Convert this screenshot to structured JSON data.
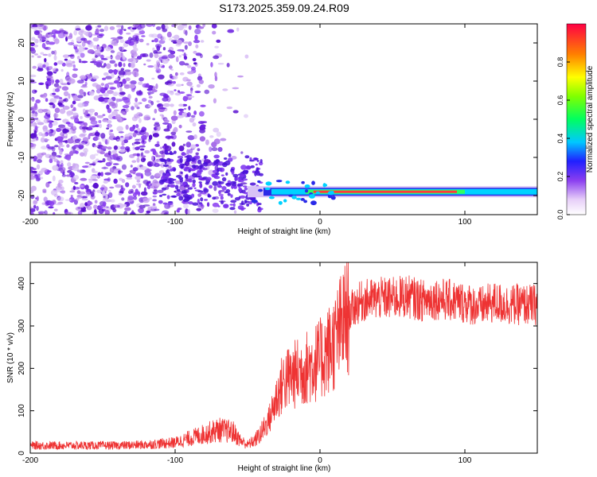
{
  "title": "S173.2025.359.09.24.R09",
  "colors": {
    "line": "#ee3333",
    "axis": "#000000",
    "background": "#ffffff"
  },
  "chart_data": [
    {
      "type": "heatmap",
      "title": "",
      "xlabel": "Height of straight line (km)",
      "ylabel": "Frequency (Hz)",
      "xlim": [
        -200,
        150
      ],
      "ylim": [
        -25,
        25
      ],
      "x_ticks": [
        -200,
        -100,
        0,
        100
      ],
      "x_tick_labels": [
        "-200",
        "-100",
        "0",
        "100"
      ],
      "y_ticks": [
        -20,
        -10,
        0,
        10,
        20
      ],
      "y_tick_labels": [
        "-20",
        "-10",
        "0",
        "10",
        "20"
      ],
      "colorbar": {
        "label": "Normalized spectral amplitude",
        "range": [
          0,
          1
        ],
        "ticks": [
          0.0,
          0.2,
          0.4,
          0.6,
          0.8
        ],
        "tick_labels": [
          "0.0",
          "0.2",
          "0.4",
          "0.6",
          "0.8"
        ]
      },
      "features": {
        "scatter_region_x": [
          -200,
          -50
        ],
        "band_frequency_hz": -19,
        "band_x": [
          -50,
          150
        ],
        "band_peak_x": [
          -10,
          100
        ]
      }
    },
    {
      "type": "line",
      "title": "",
      "xlabel": "Height of straight line (km)",
      "ylabel": "SNR (10 * v/v)",
      "xlim": [
        -200,
        150
      ],
      "ylim": [
        0,
        450
      ],
      "x_ticks": [
        -200,
        -100,
        0,
        100
      ],
      "x_tick_labels": [
        "-200",
        "-100",
        "0",
        "100"
      ],
      "y_ticks": [
        0,
        100,
        200,
        300,
        400
      ],
      "y_tick_labels": [
        "0",
        "100",
        "200",
        "300",
        "400"
      ],
      "series": [
        {
          "x": [
            -200,
            -180,
            -160,
            -140,
            -120,
            -100,
            -90,
            -80,
            -70,
            -60,
            -55,
            -50,
            -45,
            -40,
            -35,
            -30,
            -25,
            -20,
            -15,
            -10,
            -5,
            0,
            5,
            10,
            15,
            20,
            25,
            30,
            40,
            50,
            60,
            70,
            80,
            90,
            100,
            110,
            120,
            130,
            140,
            150
          ],
          "values": [
            18,
            18,
            18,
            18,
            20,
            25,
            35,
            45,
            55,
            50,
            30,
            20,
            30,
            50,
            80,
            130,
            170,
            180,
            190,
            200,
            210,
            220,
            240,
            260,
            300,
            330,
            350,
            360,
            365,
            365,
            370,
            360,
            365,
            360,
            355,
            345,
            355,
            350,
            350,
            350
          ]
        }
      ]
    }
  ]
}
